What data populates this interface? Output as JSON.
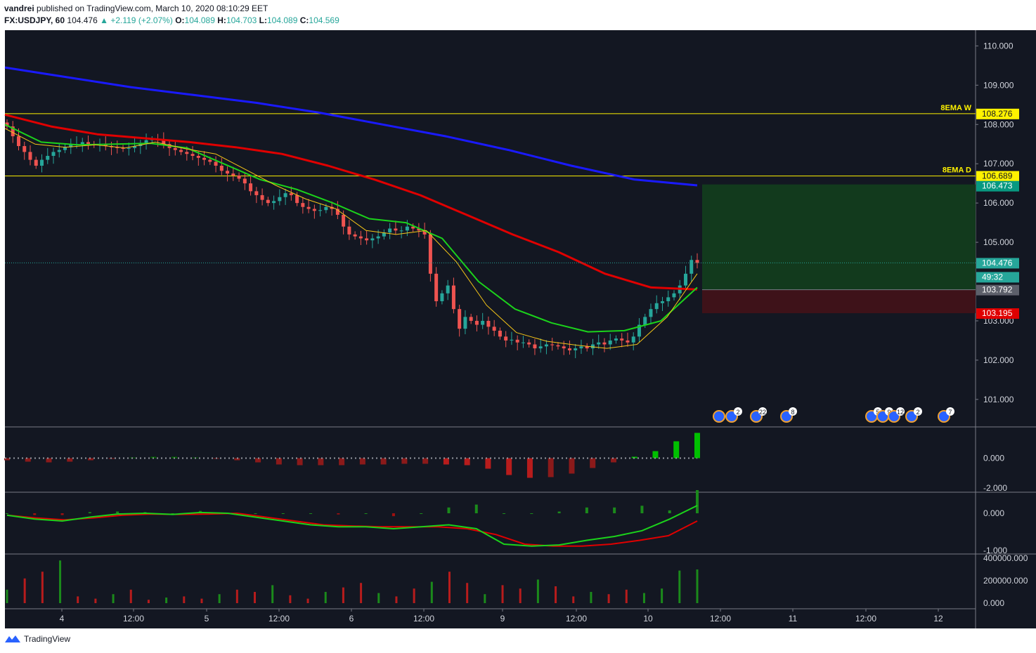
{
  "header": {
    "author": "vandrei",
    "published": "published on TradingView.com, March 10, 2020 08:10:29 EET",
    "symbol": "FX:USDJPY, 60",
    "last": "104.476",
    "change": "▲ +2.119 (+2.07%)",
    "o_label": "O:",
    "o": "104.089",
    "h_label": "H:",
    "h": "104.703",
    "l_label": "L:",
    "l": "104.089",
    "c_label": "C:",
    "c": "104.569"
  },
  "footer": {
    "brand": "TradingView"
  },
  "colors": {
    "background": "#131722",
    "candle_up": "#26a69a",
    "candle_down": "#ef5350",
    "ema_fast": "#f5c518",
    "ema_mid": "#1bd31b",
    "ema_slow": "#e00000",
    "ema_long": "#1a1aff",
    "hline": "#fff200",
    "target_zone": "#123a1d",
    "stop_zone": "#3e1219"
  },
  "chart_data": {
    "type": "candlestick",
    "symbol": "FX:USDJPY",
    "interval": "60",
    "x_ticks": [
      "4",
      "12:00",
      "5",
      "12:00",
      "6",
      "12:00",
      "9",
      "12:00",
      "10",
      "12:00",
      "11",
      "12:00",
      "12"
    ],
    "price_axis": {
      "ticks": [
        "110.000",
        "109.000",
        "108.000",
        "107.000",
        "106.000",
        "105.000",
        "103.000",
        "102.000",
        "101.000"
      ],
      "ylim": [
        100.3,
        110.4
      ]
    },
    "price_labels": {
      "ema_w": "108.276",
      "ema_d": "106.689",
      "target": "106.473",
      "last": "104.476",
      "countdown": "49:32",
      "entry": "103.792",
      "stop": "103.195"
    },
    "horizontal_lines": [
      {
        "label": "8EMA W",
        "value": 108.276
      },
      {
        "label": "8EMA D",
        "value": 106.689
      }
    ],
    "position": {
      "target": 106.473,
      "entry": 103.792,
      "stop": 103.195
    },
    "close_series": [
      107.95,
      107.7,
      107.45,
      107.3,
      107.1,
      106.95,
      107.1,
      107.2,
      107.3,
      107.35,
      107.42,
      107.5,
      107.5,
      107.55,
      107.5,
      107.48,
      107.5,
      107.45,
      107.42,
      107.4,
      107.38,
      107.4,
      107.45,
      107.5,
      107.6,
      107.62,
      107.6,
      107.5,
      107.4,
      107.35,
      107.3,
      107.25,
      107.2,
      107.15,
      107.1,
      107.05,
      106.95,
      106.82,
      106.75,
      106.7,
      106.62,
      106.5,
      106.3,
      106.2,
      106.08,
      106.0,
      106.05,
      106.15,
      106.25,
      106.2,
      106.0,
      105.9,
      105.85,
      105.8,
      105.82,
      105.9,
      105.85,
      105.7,
      105.4,
      105.2,
      105.15,
      105.1,
      105.05,
      105.1,
      105.15,
      105.25,
      105.35,
      105.3,
      105.3,
      105.4,
      105.35,
      105.3,
      105.2,
      104.2,
      103.5,
      103.7,
      103.9,
      103.3,
      102.8,
      103.1,
      103.0,
      102.9,
      103.0,
      102.85,
      102.75,
      102.6,
      102.5,
      102.52,
      102.45,
      102.45,
      102.4,
      102.3,
      102.35,
      102.4,
      102.38,
      102.35,
      102.3,
      102.25,
      102.3,
      102.35,
      102.3,
      102.4,
      102.45,
      102.4,
      102.5,
      102.55,
      102.5,
      102.45,
      102.6,
      102.9,
      103.1,
      103.3,
      103.45,
      103.5,
      103.6,
      103.7,
      103.9,
      104.2,
      104.55,
      104.476
    ],
    "ema_fast_series": [
      107.9,
      107.5,
      107.42,
      107.48,
      107.4,
      107.55,
      107.38,
      107.25,
      106.85,
      106.45,
      106.1,
      105.85,
      105.3,
      105.2,
      105.3,
      104.5,
      103.4,
      102.7,
      102.48,
      102.38,
      102.3,
      102.4,
      103.1,
      104.2
    ],
    "ema_mid_series": [
      108.0,
      107.55,
      107.48,
      107.5,
      107.52,
      107.4,
      107.0,
      106.6,
      106.35,
      106.0,
      105.6,
      105.5,
      105.1,
      104.0,
      103.3,
      102.95,
      102.72,
      102.75,
      103.0,
      103.85
    ],
    "ema_slow_series": [
      108.25,
      107.95,
      107.75,
      107.65,
      107.55,
      107.42,
      107.25,
      106.95,
      106.6,
      106.2,
      105.7,
      105.2,
      104.75,
      104.2,
      103.85,
      103.8
    ],
    "ema_long_series": [
      109.45,
      109.2,
      108.95,
      108.75,
      108.55,
      108.3,
      108.0,
      107.7,
      107.35,
      106.95,
      106.6,
      106.45
    ],
    "events": [
      {
        "label": "2"
      },
      {
        "label": "22"
      },
      {
        "label": "8"
      },
      {
        "label": "5"
      },
      {
        "label": "9"
      },
      {
        "label": "12"
      },
      {
        "label": "2"
      },
      {
        "label": "7"
      }
    ],
    "panels": [
      {
        "name": "squeeze",
        "ticks": [
          "0.000",
          "-2.000"
        ],
        "histogram": [
          -0.3,
          -0.5,
          -0.6,
          -0.5,
          -0.3,
          -0.1,
          0.1,
          0.2,
          0.2,
          0.1,
          -0.1,
          -0.3,
          -0.6,
          -0.9,
          -1.0,
          -1.0,
          -1.0,
          -0.9,
          -0.9,
          -0.8,
          -0.8,
          -0.9,
          -1.0,
          -1.5,
          -2.4,
          -2.8,
          -2.7,
          -2.2,
          -1.4,
          -0.6,
          0.2,
          1.0,
          2.4,
          3.6
        ]
      },
      {
        "name": "macd",
        "ticks": [
          "0.000",
          "-1.000"
        ],
        "macd_series": [
          -0.05,
          -0.15,
          -0.2,
          -0.1,
          -0.02,
          0.0,
          -0.03,
          0.02,
          0.0,
          -0.1,
          -0.2,
          -0.3,
          -0.35,
          -0.35,
          -0.4,
          -0.35,
          -0.3,
          -0.4,
          -0.8,
          -0.85,
          -0.82,
          -0.7,
          -0.6,
          -0.45,
          -0.15,
          0.2
        ],
        "signal_series": [
          -0.05,
          -0.12,
          -0.17,
          -0.12,
          -0.05,
          -0.02,
          -0.03,
          -0.02,
          0.0,
          -0.1,
          -0.2,
          -0.3,
          -0.33,
          -0.35,
          -0.35,
          -0.35,
          -0.4,
          -0.55,
          -0.8,
          -0.85,
          -0.85,
          -0.8,
          -0.7,
          -0.58,
          -0.2
        ]
      },
      {
        "name": "volume",
        "ticks": [
          "400000.000",
          "200000.000",
          "0.000"
        ],
        "values": [
          120000,
          220000,
          280000,
          380000,
          60000,
          40000,
          80000,
          120000,
          30000,
          50000,
          60000,
          40000,
          80000,
          120000,
          100000,
          160000,
          70000,
          40000,
          100000,
          140000,
          180000,
          90000,
          60000,
          130000,
          190000,
          280000,
          180000,
          80000,
          160000,
          130000,
          210000,
          150000,
          60000,
          100000,
          80000,
          120000,
          90000,
          130000,
          290000,
          300000
        ]
      }
    ]
  }
}
